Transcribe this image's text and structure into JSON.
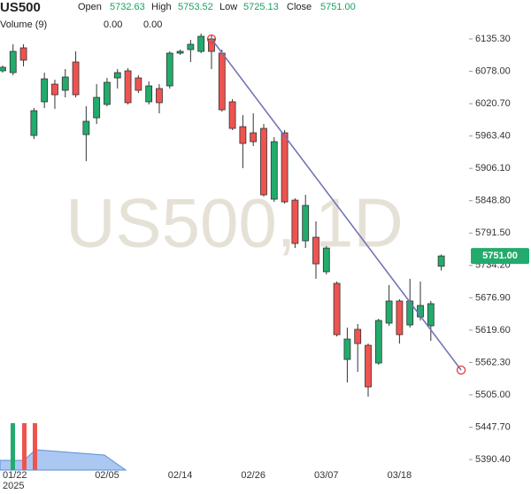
{
  "chart_data": {
    "type": "candlestick",
    "title": "US500",
    "header": {
      "open_label": "Open",
      "open": "5732.63",
      "high_label": "High",
      "high": "5753.52",
      "low_label": "Low",
      "low": "5725.13",
      "close_label": "Close",
      "close": "5751.00"
    },
    "volume_label": "Volume (9)",
    "volume_values": [
      "0.00",
      "0.00"
    ],
    "volume_colors": [
      "#e53935",
      "#3f7fd6"
    ],
    "watermark": "US500, 1D",
    "year_label": "2025",
    "categories": [
      "01/22",
      null,
      null,
      null,
      null,
      null,
      null,
      null,
      null,
      null,
      "02/05",
      null,
      null,
      null,
      null,
      null,
      null,
      "02/14",
      null,
      null,
      null,
      null,
      null,
      null,
      "02/26",
      null,
      null,
      null,
      null,
      null,
      null,
      "03/07",
      null,
      null,
      null,
      null,
      null,
      null,
      "03/18",
      null,
      null,
      null,
      null
    ],
    "open": [
      6078.9,
      6075.7,
      6119.6,
      5964.4,
      6024.0,
      6055.3,
      6044.4,
      6094.5,
      5965.9,
      5995.7,
      6019.3,
      6066.3,
      6078.9,
      6066.3,
      6024.0,
      6047.5,
      6052.2,
      6110.2,
      6116.5,
      6113.3,
      6135.3,
      6110.2,
      6024.0,
      5980.0,
      5969.1,
      5976.9,
      5851.5,
      5969.1,
      5849.9,
      5777.8,
      5784.1,
      5723.0,
      5702.5,
      5567.7,
      5621.0,
      5592.8,
      5561.4,
      5632.0,
      5671.2,
      5628.8,
      5642.9,
      5627.3,
      5732.63
    ],
    "high": [
      6088.3,
      6125.9,
      6125.9,
      6013.0,
      6075.7,
      6063.2,
      6082.0,
      6113.3,
      6016.1,
      6055.3,
      6066.3,
      6082.0,
      6083.6,
      6071.0,
      6060.0,
      6055.3,
      6113.3,
      6116.5,
      6133.7,
      6144.7,
      6141.6,
      6116.5,
      6028.7,
      6000.5,
      6003.6,
      5984.8,
      5961.3,
      5973.9,
      5853.1,
      5859.3,
      5812.3,
      5768.4,
      5705.7,
      5624.1,
      5630.4,
      5595.9,
      5639.8,
      5699.4,
      5674.3,
      5710.4,
      5705.7,
      5671.2,
      5753.52
    ],
    "low": [
      6075.7,
      6071.0,
      6086.7,
      5958.1,
      6013.0,
      6011.4,
      6031.8,
      6031.8,
      5918.9,
      5984.8,
      6016.1,
      6047.5,
      6019.3,
      6039.7,
      6019.3,
      6003.6,
      6047.5,
      6107.1,
      6094.5,
      6110.2,
      6082.0,
      6006.7,
      5973.9,
      5906.4,
      5945.6,
      5856.2,
      5846.8,
      5843.7,
      5765.1,
      5765.1,
      5710.4,
      5718.2,
      5608.5,
      5526.9,
      5545.7,
      5501.8,
      5558.3,
      5627.3,
      5595.9,
      5624.1,
      5636.7,
      5600.6,
      5725.13
    ],
    "close": [
      6085.1,
      6113.3,
      6097.7,
      6008.3,
      6064.7,
      6036.5,
      6067.9,
      6036.5,
      5989.5,
      6031.8,
      6058.5,
      6075.7,
      6022.4,
      6044.4,
      6052.2,
      6022.4,
      6110.2,
      6113.3,
      6125.9,
      6140.0,
      6113.3,
      6009.9,
      5976.9,
      5950.3,
      5953.4,
      5859.3,
      5953.4,
      5846.8,
      5773.1,
      5840.5,
      5737.0,
      5765.1,
      5611.6,
      5603.8,
      5595.9,
      5519.1,
      5636.7,
      5671.2,
      5611.6,
      5671.2,
      5663.3,
      5666.5,
      5751.0
    ],
    "up_color": "#22ab6c",
    "down_color": "#ef5350",
    "trendline": {
      "x": [
        20,
        43.9
      ],
      "y": [
        6135.3,
        5548.9
      ],
      "color": "#7474b8",
      "marker_color": "#e53935"
    },
    "xlim": [
      -0.25,
      44.66
    ],
    "ylim": [
      5373.3,
      6204.3
    ],
    "yticks": [
      {
        "value": 6135.3,
        "label": "6135.30"
      },
      {
        "value": 6078.0,
        "label": "6078.00"
      },
      {
        "value": 6020.7,
        "label": "6020.70"
      },
      {
        "value": 5963.4,
        "label": "5963.40"
      },
      {
        "value": 5906.1,
        "label": "5906.10"
      },
      {
        "value": 5848.8,
        "label": "5848.80"
      },
      {
        "value": 5791.5,
        "label": "5791.50"
      },
      {
        "value": 5734.2,
        "label": "5734.20"
      },
      {
        "value": 5676.9,
        "label": "5676.90"
      },
      {
        "value": 5619.6,
        "label": "5619.60"
      },
      {
        "value": 5562.3,
        "label": "5562.30"
      },
      {
        "value": 5505.0,
        "label": "5505.00"
      },
      {
        "value": 5447.7,
        "label": "5447.70"
      },
      {
        "value": 5390.4,
        "label": "5390.40"
      }
    ],
    "last_price": 5751.0,
    "last_price_color": "#22ab6c"
  }
}
